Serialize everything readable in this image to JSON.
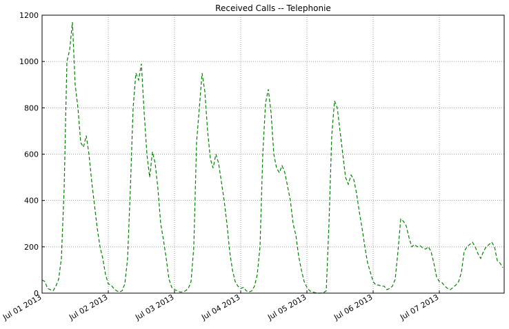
{
  "chart_data": {
    "type": "line",
    "title": "Received Calls -- Telephonie",
    "x": [
      0,
      1,
      2,
      3,
      4,
      5,
      6,
      7,
      8,
      9,
      10,
      11,
      12,
      13,
      14,
      15,
      16,
      17,
      18,
      19,
      20,
      21,
      22,
      23,
      24,
      25,
      26,
      27,
      28,
      29,
      30,
      31,
      32,
      33,
      34,
      35,
      36,
      37,
      38,
      39,
      40,
      41,
      42,
      43,
      44,
      45,
      46,
      47,
      48,
      49,
      50,
      51,
      52,
      53,
      54,
      55,
      56,
      57,
      58,
      59,
      60,
      61,
      62,
      63,
      64,
      65,
      66,
      67,
      68,
      69,
      70,
      71,
      72,
      73,
      74,
      75,
      76,
      77,
      78,
      79,
      80,
      81,
      82,
      83,
      84,
      85,
      86,
      87,
      88,
      89,
      90,
      91,
      92,
      93,
      94,
      95,
      96,
      97,
      98,
      99,
      100,
      101,
      102,
      103,
      104,
      105,
      106,
      107,
      108,
      109,
      110,
      111,
      112,
      113,
      114,
      115,
      116,
      117,
      118,
      119,
      120,
      121,
      122,
      123,
      124,
      125,
      126,
      127,
      128,
      129,
      130,
      131,
      132,
      133,
      134,
      135,
      136,
      137,
      138,
      139,
      140,
      141,
      142,
      143,
      144,
      145,
      146,
      147,
      148,
      149,
      150,
      151,
      152,
      153,
      154,
      155,
      156,
      157,
      158,
      159,
      160,
      161,
      162,
      163,
      164,
      165,
      166,
      167
    ],
    "series": [
      {
        "color": "#008000",
        "values": [
          57,
          50,
          20,
          15,
          10,
          30,
          60,
          150,
          450,
          1000,
          1050,
          1170,
          900,
          800,
          650,
          630,
          680,
          600,
          480,
          380,
          280,
          200,
          150,
          80,
          40,
          35,
          20,
          10,
          5,
          10,
          40,
          150,
          450,
          800,
          950,
          920,
          990,
          780,
          600,
          500,
          610,
          560,
          450,
          300,
          230,
          150,
          60,
          25,
          15,
          10,
          5,
          5,
          10,
          20,
          50,
          200,
          650,
          800,
          950,
          870,
          700,
          580,
          540,
          600,
          560,
          480,
          400,
          300,
          180,
          100,
          50,
          30,
          20,
          25,
          10,
          5,
          10,
          30,
          80,
          200,
          600,
          820,
          880,
          780,
          600,
          540,
          520,
          550,
          520,
          460,
          400,
          300,
          250,
          160,
          100,
          50,
          25,
          10,
          5,
          2,
          0,
          0,
          2,
          10,
          300,
          680,
          830,
          800,
          700,
          600,
          500,
          470,
          510,
          490,
          430,
          350,
          280,
          200,
          130,
          90,
          50,
          35,
          35,
          30,
          30,
          15,
          20,
          30,
          60,
          180,
          320,
          310,
          290,
          240,
          200,
          210,
          200,
          205,
          195,
          190,
          200,
          180,
          130,
          70,
          50,
          45,
          30,
          20,
          15,
          25,
          35,
          50,
          90,
          180,
          200,
          210,
          220,
          200,
          170,
          150,
          180,
          200,
          210,
          220,
          200,
          140,
          130,
          110
        ]
      }
    ],
    "xlim": [
      0,
      167.5
    ],
    "xticks": [
      {
        "value": 0,
        "label": "Jul 01 2013"
      },
      {
        "value": 24,
        "label": "Jul 02 2013"
      },
      {
        "value": 48,
        "label": "Jul 03 2013"
      },
      {
        "value": 72,
        "label": "Jul 04 2013"
      },
      {
        "value": 96,
        "label": "Jul 05 2013"
      },
      {
        "value": 120,
        "label": "Jul 06 2013"
      },
      {
        "value": 144,
        "label": "Jul 07 2013"
      }
    ],
    "ylim": [
      0,
      1200
    ],
    "yticks": [
      0,
      200,
      400,
      600,
      800,
      1000,
      1200
    ],
    "grid": true
  }
}
